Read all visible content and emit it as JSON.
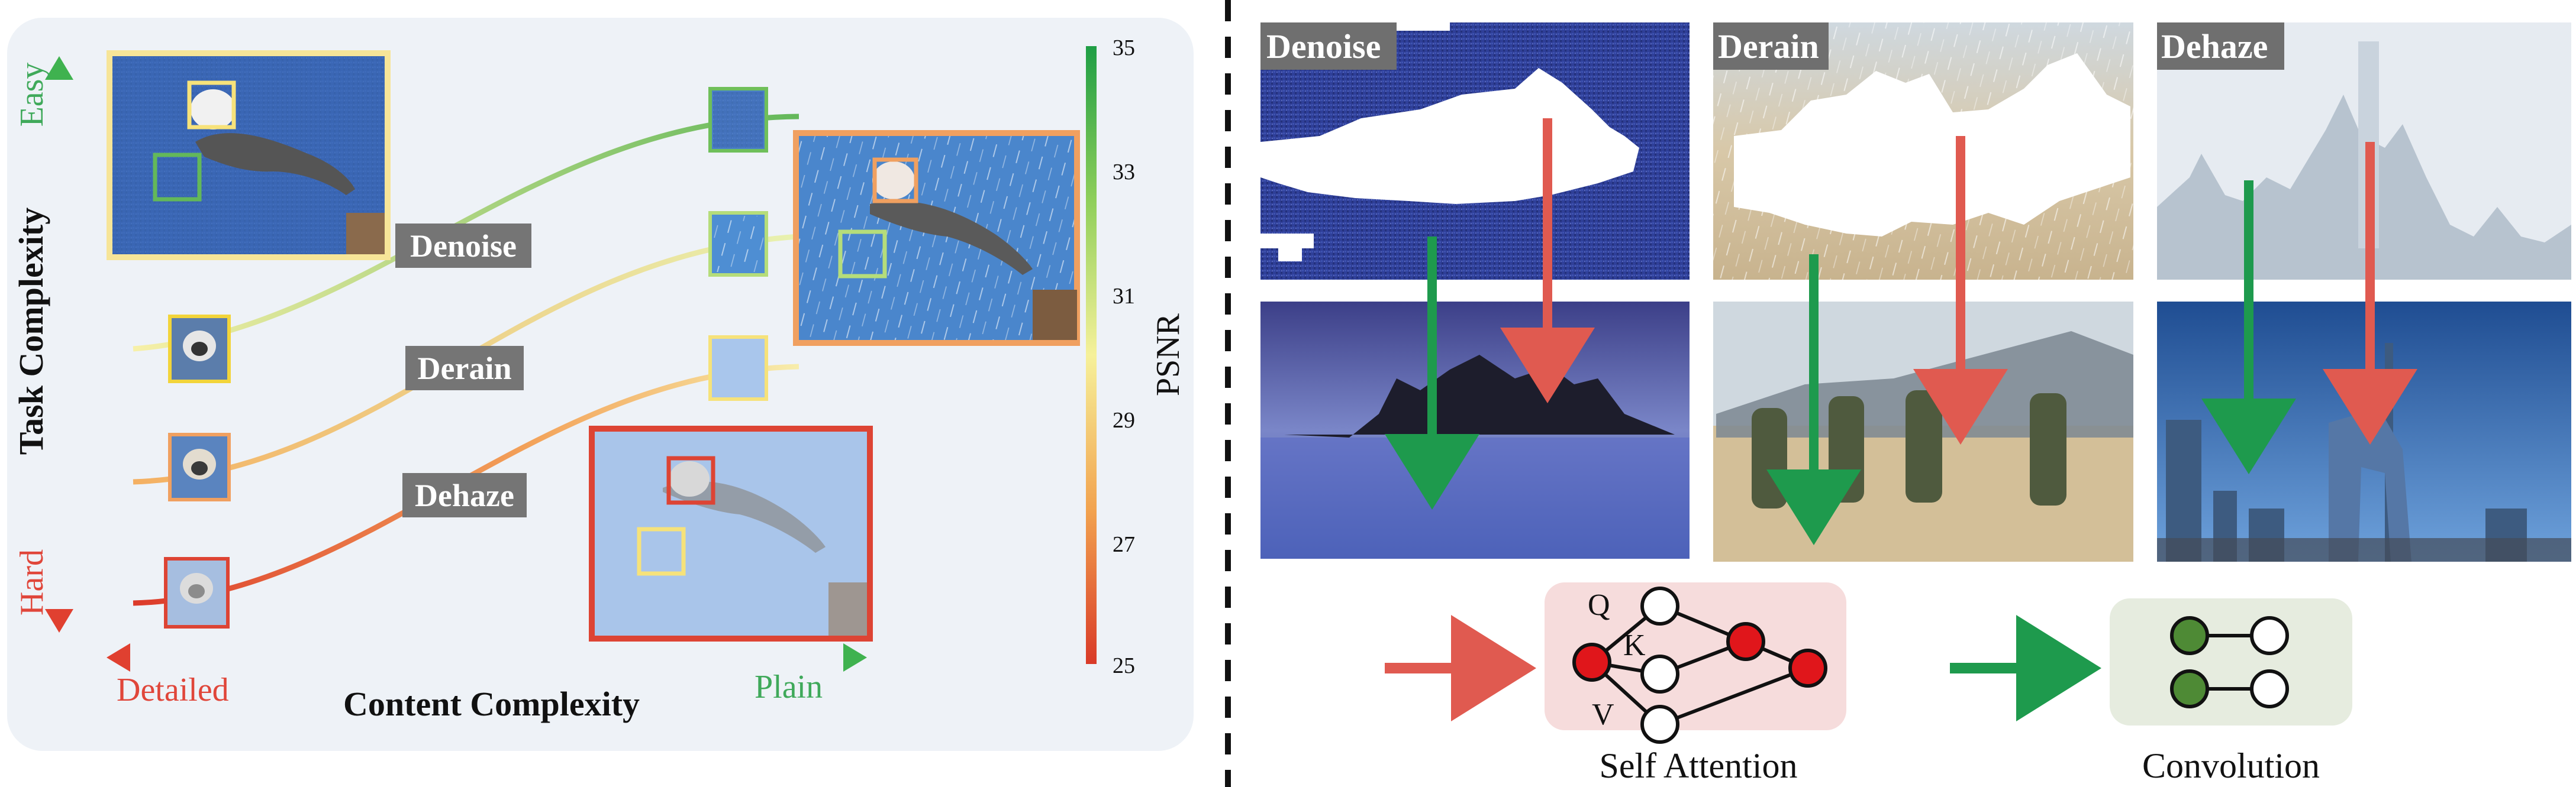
{
  "left_panel": {
    "y_axis": {
      "title": "Task Complexity",
      "top_label": "Easy",
      "bottom_label": "Hard"
    },
    "x_axis": {
      "title": "Content Complexity",
      "left_label": "Detailed",
      "right_label": "Plain"
    },
    "colorbar": {
      "title": "PSNR",
      "ticks": [
        "35",
        "33",
        "31",
        "29",
        "27",
        "25"
      ]
    },
    "tasks": [
      "Denoise",
      "Derain",
      "Dehaze"
    ]
  },
  "right_panel": {
    "tasks": [
      "Denoise",
      "Derain",
      "Dehaze"
    ],
    "legend": {
      "attention": {
        "label": "Self Attention",
        "q": "Q",
        "k": "K",
        "v": "V"
      },
      "convolution": {
        "label": "Convolution"
      }
    }
  },
  "colors": {
    "easy_green": "#4caf50",
    "hard_red": "#e53935",
    "orange": "#f0a060",
    "yellow": "#f6e27a",
    "attention_bg": "#f6dcdc",
    "conv_bg": "#e6ecdf",
    "panel_bg": "#eef2f7",
    "label_bg": "#757575"
  }
}
